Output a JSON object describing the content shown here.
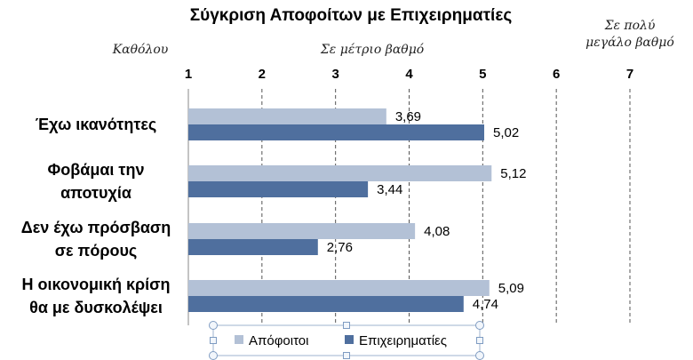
{
  "chart_data": {
    "type": "bar",
    "orientation": "horizontal",
    "title": "Σύγκριση Αποφοίτων με Επιχειρηματίες",
    "scale_labels": [
      {
        "value": 1,
        "lines": [
          "Καθόλου"
        ]
      },
      {
        "value": 3.5,
        "lines": [
          "Σε μέτριο βαθμό"
        ]
      },
      {
        "value": 7,
        "lines": [
          "Σε πολύ",
          "μεγάλο βαθμό"
        ]
      }
    ],
    "xlim": [
      1,
      7
    ],
    "xticks": [
      "1",
      "2",
      "3",
      "4",
      "5",
      "6",
      "7"
    ],
    "grid": "vertical-dashed",
    "categories": [
      {
        "lines": [
          "Έχω ικανότητες"
        ]
      },
      {
        "lines": [
          "Φοβάμαι την",
          "αποτυχία"
        ]
      },
      {
        "lines": [
          "Δεν έχω πρόσβαση",
          "σε πόρους"
        ]
      },
      {
        "lines": [
          "Η οικονομική κρίση",
          "θα με δυσκολέψει"
        ]
      }
    ],
    "series": [
      {
        "name": "Απόφοιτοι",
        "color": "#b3c1d6",
        "values": [
          3.69,
          5.12,
          4.08,
          5.09
        ],
        "labels": [
          "3,69",
          "5,12",
          "4,08",
          "5,09"
        ]
      },
      {
        "name": "Επιχειρηματίες",
        "color": "#4f6f9e",
        "values": [
          5.02,
          3.44,
          2.76,
          4.74
        ],
        "labels": [
          "5,02",
          "3,44",
          "2,76",
          "4,74"
        ]
      }
    ],
    "legend_position": "bottom"
  }
}
